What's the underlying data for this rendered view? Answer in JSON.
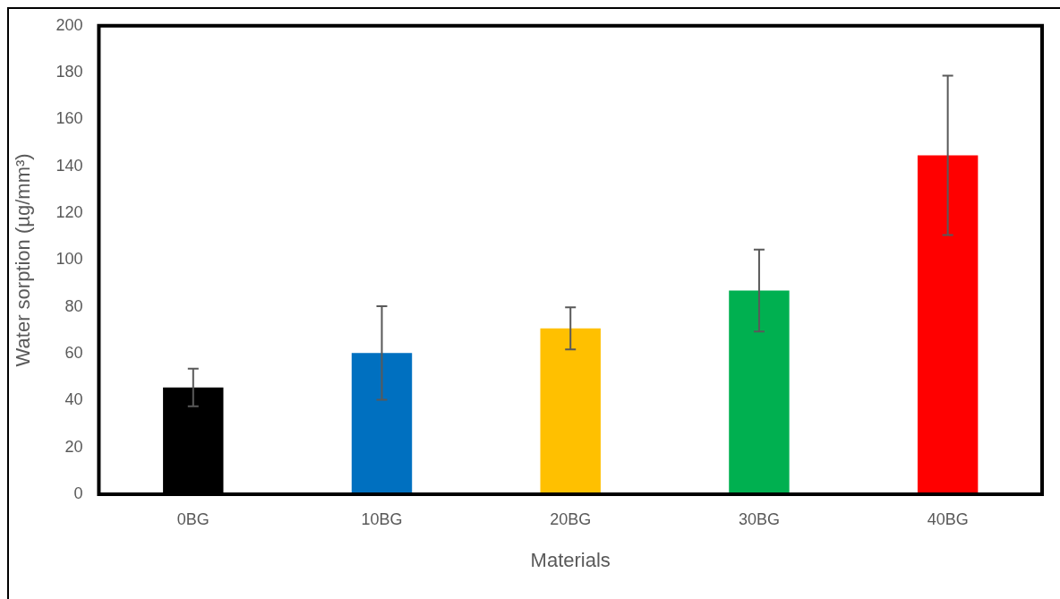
{
  "chart_data": {
    "type": "bar",
    "xlabel": "Materials",
    "ylabel": "Water sorption (µg/mm³)",
    "categories": [
      "0BG",
      "10BG",
      "20BG",
      "30BG",
      "40BG"
    ],
    "values": [
      45.6,
      60.3,
      70.8,
      87,
      144.7
    ],
    "colors": [
      "#000000",
      "#0070c0",
      "#ffc000",
      "#00b050",
      "#ff0000"
    ],
    "errors": [
      8,
      20,
      9,
      17.5,
      34
    ],
    "ylim": [
      0,
      200
    ],
    "yticks": [
      0,
      20,
      40,
      60,
      80,
      100,
      120,
      140,
      160,
      180,
      200
    ],
    "grid": false,
    "legend": false
  }
}
